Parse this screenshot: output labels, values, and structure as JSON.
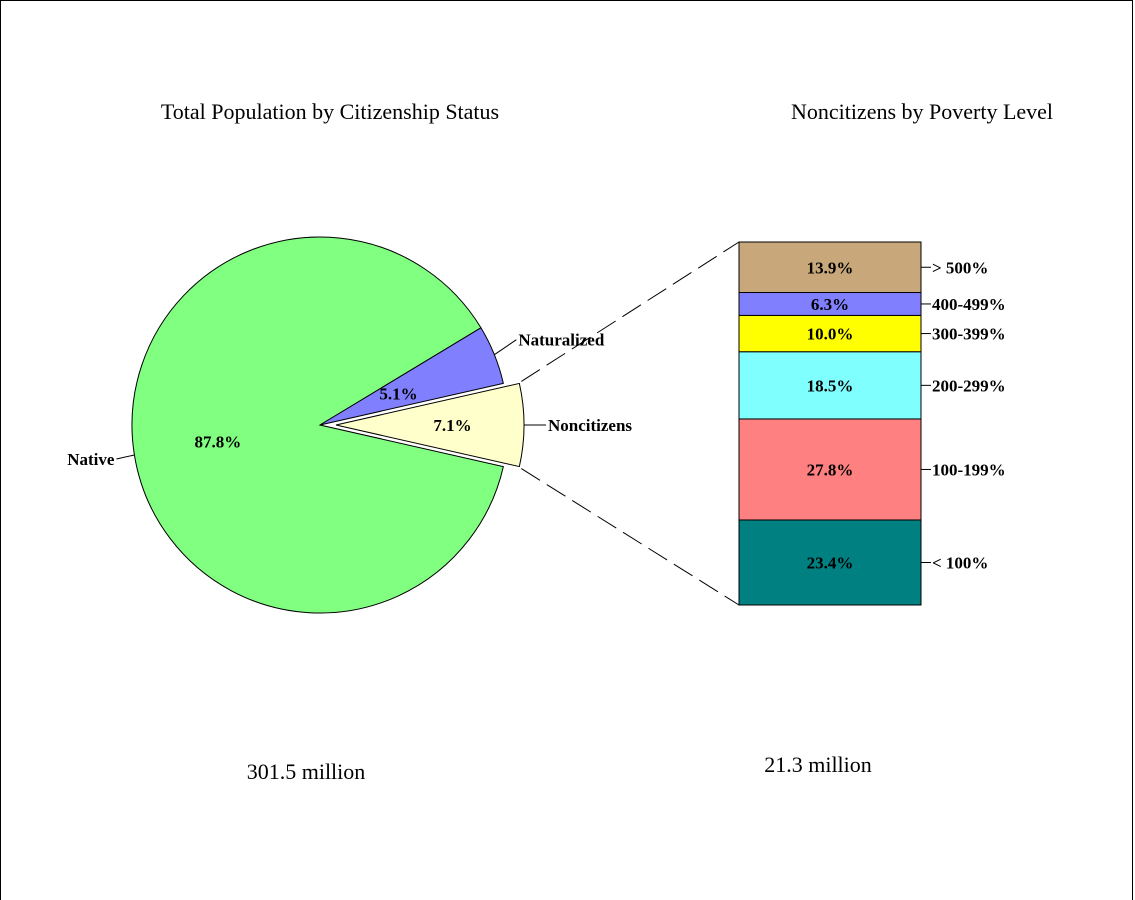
{
  "chart_data": [
    {
      "type": "pie",
      "title": "Total Population by Citizenship Status",
      "total_label": "301.5 million",
      "slices": [
        {
          "label": "Native",
          "value": 87.8,
          "value_label": "87.8%",
          "color": "#80ff80"
        },
        {
          "label": "Naturalized",
          "value": 5.1,
          "value_label": "5.1%",
          "color": "#8080ff"
        },
        {
          "label": "Noncitizens",
          "value": 7.1,
          "value_label": "7.1%",
          "color": "#ffffcc",
          "exploded": true
        }
      ]
    },
    {
      "type": "bar",
      "subtype": "stacked-100",
      "title": "Noncitizens by Poverty Level",
      "total_label": "21.3 million",
      "segments": [
        {
          "label": "< 100%",
          "value": 23.4,
          "value_label": "23.4%",
          "color": "#008080"
        },
        {
          "label": "100-199%",
          "value": 27.8,
          "value_label": "27.8%",
          "color": "#ff8080"
        },
        {
          "label": "200-299%",
          "value": 18.5,
          "value_label": "18.5%",
          "color": "#80ffff"
        },
        {
          "label": "300-399%",
          "value": 10.0,
          "value_label": "10.0%",
          "color": "#ffff00"
        },
        {
          "label": "400-499%",
          "value": 6.3,
          "value_label": "6.3%",
          "color": "#8080ff"
        },
        {
          "label": "> 500%",
          "value": 13.9,
          "value_label": "13.9%",
          "color": "#c8a87a"
        }
      ]
    }
  ]
}
